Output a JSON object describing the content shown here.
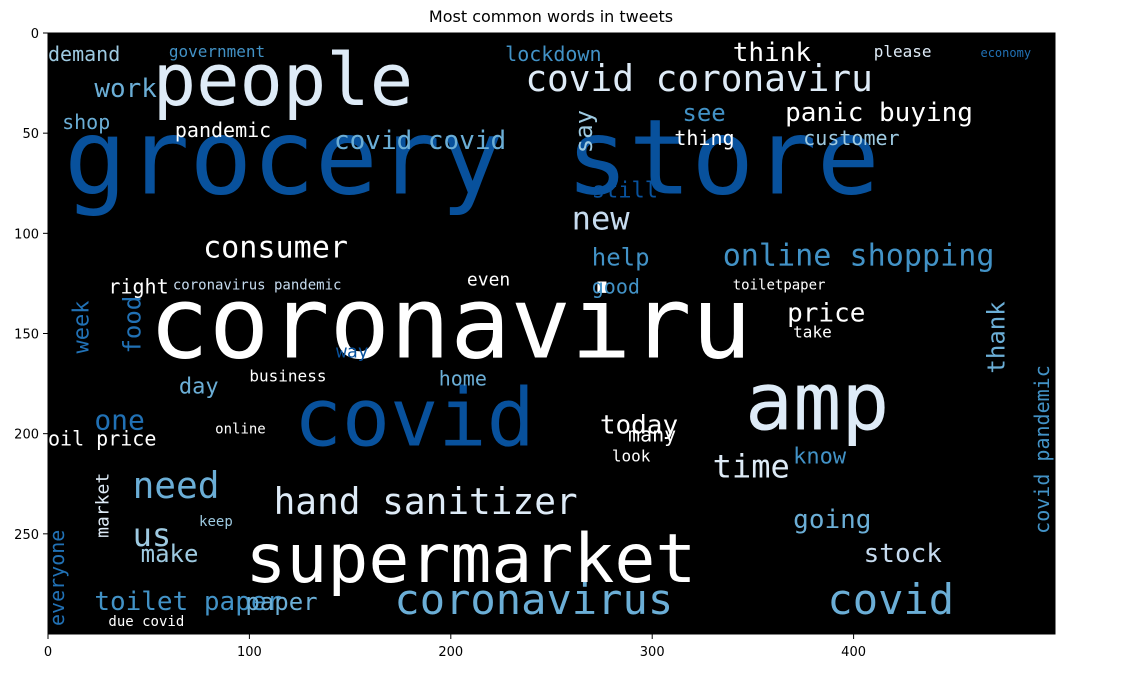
{
  "chart_data": {
    "type": "wordcloud",
    "title": "Most common words in tweets",
    "xlabel": "",
    "ylabel": "",
    "xlim": [
      0,
      500
    ],
    "ylim": [
      300,
      0
    ],
    "x_ticks": [
      0,
      100,
      200,
      300,
      400
    ],
    "y_ticks": [
      0,
      50,
      100,
      150,
      200,
      250
    ],
    "background_color": "#000000",
    "palette": [
      "#084594",
      "#2171b5",
      "#4292c6",
      "#6baed6",
      "#9ecae1",
      "#c6dbef",
      "#deebf7",
      "#ffffff"
    ],
    "words": [
      {
        "text": "grocery store",
        "x": 8,
        "y": 80,
        "size": 52,
        "rotate": 0,
        "color": "#08519c"
      },
      {
        "text": "coronaviru",
        "x": 50,
        "y": 162,
        "size": 50,
        "rotate": 0,
        "color": "#ffffff"
      },
      {
        "text": "people",
        "x": 52,
        "y": 36,
        "size": 36,
        "rotate": 0,
        "color": "#deebf7"
      },
      {
        "text": "covid",
        "x": 122,
        "y": 206,
        "size": 40,
        "rotate": 0,
        "color": "#08519c"
      },
      {
        "text": "amp",
        "x": 346,
        "y": 198,
        "size": 40,
        "rotate": 0,
        "color": "#deebf7"
      },
      {
        "text": "supermarket",
        "x": 98,
        "y": 274,
        "size": 34,
        "rotate": 0,
        "color": "#ffffff"
      },
      {
        "text": "covid coronaviru",
        "x": 237,
        "y": 29,
        "size": 18,
        "rotate": 0,
        "color": "#deebf7"
      },
      {
        "text": "coronavirus",
        "x": 172,
        "y": 290,
        "size": 21,
        "rotate": 0,
        "color": "#6baed6"
      },
      {
        "text": "covid",
        "x": 387,
        "y": 290,
        "size": 21,
        "rotate": 0,
        "color": "#6baed6"
      },
      {
        "text": "hand sanitizer",
        "x": 112,
        "y": 240,
        "size": 18,
        "rotate": 0,
        "color": "#deebf7"
      },
      {
        "text": "need",
        "x": 42,
        "y": 232,
        "size": 18,
        "rotate": 0,
        "color": "#6baed6"
      },
      {
        "text": "time",
        "x": 330,
        "y": 222,
        "size": 16,
        "rotate": 0,
        "color": "#deebf7"
      },
      {
        "text": "online shopping",
        "x": 335,
        "y": 116,
        "size": 15,
        "rotate": 0,
        "color": "#4292c6"
      },
      {
        "text": "consumer",
        "x": 77,
        "y": 112,
        "size": 15,
        "rotate": 0,
        "color": "#ffffff"
      },
      {
        "text": "panic buying",
        "x": 366,
        "y": 44,
        "size": 13,
        "rotate": 0,
        "color": "#ffffff"
      },
      {
        "text": "covid covid",
        "x": 142,
        "y": 58,
        "size": 13,
        "rotate": 0,
        "color": "#6baed6"
      },
      {
        "text": "new",
        "x": 260,
        "y": 98,
        "size": 16,
        "rotate": 0,
        "color": "#c6dbef"
      },
      {
        "text": "price",
        "x": 367,
        "y": 144,
        "size": 13,
        "rotate": 0,
        "color": "#ffffff"
      },
      {
        "text": "going",
        "x": 370,
        "y": 247,
        "size": 13,
        "rotate": 0,
        "color": "#6baed6"
      },
      {
        "text": "today",
        "x": 274,
        "y": 200,
        "size": 13,
        "rotate": 0,
        "color": "#ffffff"
      },
      {
        "text": "toilet paper",
        "x": 23,
        "y": 288,
        "size": 13,
        "rotate": 0,
        "color": "#4292c6"
      },
      {
        "text": "us",
        "x": 42,
        "y": 256,
        "size": 16,
        "rotate": 0,
        "color": "#9ecae1"
      },
      {
        "text": "one",
        "x": 23,
        "y": 198,
        "size": 14,
        "rotate": 0,
        "color": "#2171b5"
      },
      {
        "text": "work",
        "x": 23,
        "y": 32,
        "size": 13,
        "rotate": 0,
        "color": "#6baed6"
      },
      {
        "text": "shop",
        "x": 7,
        "y": 48,
        "size": 10,
        "rotate": 0,
        "color": "#6baed6"
      },
      {
        "text": "pandemic",
        "x": 63,
        "y": 52,
        "size": 10,
        "rotate": 0,
        "color": "#ffffff"
      },
      {
        "text": "demand",
        "x": 0,
        "y": 14,
        "size": 10,
        "rotate": 0,
        "color": "#9ecae1"
      },
      {
        "text": "government",
        "x": 60,
        "y": 12,
        "size": 8,
        "rotate": 0,
        "color": "#4292c6"
      },
      {
        "text": "lockdown",
        "x": 227,
        "y": 14,
        "size": 10,
        "rotate": 0,
        "color": "#4292c6"
      },
      {
        "text": "think",
        "x": 340,
        "y": 14,
        "size": 13,
        "rotate": 0,
        "color": "#ffffff"
      },
      {
        "text": "please",
        "x": 410,
        "y": 12,
        "size": 8,
        "rotate": 0,
        "color": "#deebf7"
      },
      {
        "text": "economy",
        "x": 463,
        "y": 12,
        "size": 6,
        "rotate": 0,
        "color": "#2171b5"
      },
      {
        "text": "see",
        "x": 315,
        "y": 44,
        "size": 12,
        "rotate": 0,
        "color": "#4292c6"
      },
      {
        "text": "thing",
        "x": 311,
        "y": 56,
        "size": 10,
        "rotate": 0,
        "color": "#ffffff"
      },
      {
        "text": "say",
        "x": 270,
        "y": 60,
        "size": 12,
        "rotate": -90,
        "color": "#9ecae1"
      },
      {
        "text": "customer",
        "x": 375,
        "y": 56,
        "size": 10,
        "rotate": 0,
        "color": "#9ecae1"
      },
      {
        "text": "still",
        "x": 270,
        "y": 82,
        "size": 11,
        "rotate": 0,
        "color": "#08519c"
      },
      {
        "text": "help",
        "x": 270,
        "y": 116,
        "size": 12,
        "rotate": 0,
        "color": "#4292c6"
      },
      {
        "text": "good",
        "x": 270,
        "y": 130,
        "size": 10,
        "rotate": 0,
        "color": "#4292c6"
      },
      {
        "text": "right",
        "x": 30,
        "y": 130,
        "size": 10,
        "rotate": 0,
        "color": "#ffffff"
      },
      {
        "text": "coronavirus pandemic",
        "x": 62,
        "y": 128,
        "size": 7,
        "rotate": 0,
        "color": "#c6dbef"
      },
      {
        "text": "even",
        "x": 208,
        "y": 126,
        "size": 9,
        "rotate": 0,
        "color": "#ffffff"
      },
      {
        "text": "toiletpaper",
        "x": 340,
        "y": 128,
        "size": 7,
        "rotate": 0,
        "color": "#ffffff"
      },
      {
        "text": "week",
        "x": 20,
        "y": 160,
        "size": 11,
        "rotate": -90,
        "color": "#2171b5"
      },
      {
        "text": "food",
        "x": 46,
        "y": 160,
        "size": 12,
        "rotate": -90,
        "color": "#2171b5"
      },
      {
        "text": "day",
        "x": 65,
        "y": 180,
        "size": 11,
        "rotate": 0,
        "color": "#6baed6"
      },
      {
        "text": "business",
        "x": 100,
        "y": 174,
        "size": 8,
        "rotate": 0,
        "color": "#ffffff"
      },
      {
        "text": "home",
        "x": 194,
        "y": 176,
        "size": 10,
        "rotate": 0,
        "color": "#6baed6"
      },
      {
        "text": "way",
        "x": 143,
        "y": 162,
        "size": 9,
        "rotate": 0,
        "color": "#08519c"
      },
      {
        "text": "thank",
        "x": 475,
        "y": 170,
        "size": 12,
        "rotate": -90,
        "color": "#6baed6"
      },
      {
        "text": "covid pandemic",
        "x": 497,
        "y": 250,
        "size": 10,
        "rotate": -90,
        "color": "#4292c6"
      },
      {
        "text": "take",
        "x": 370,
        "y": 152,
        "size": 8,
        "rotate": 0,
        "color": "#ffffff"
      },
      {
        "text": "oil price",
        "x": 0,
        "y": 206,
        "size": 10,
        "rotate": 0,
        "color": "#ffffff"
      },
      {
        "text": "market",
        "x": 30,
        "y": 252,
        "size": 9,
        "rotate": -90,
        "color": "#deebf7"
      },
      {
        "text": "everyone",
        "x": 8,
        "y": 296,
        "size": 10,
        "rotate": -90,
        "color": "#2171b5"
      },
      {
        "text": "many",
        "x": 288,
        "y": 204,
        "size": 10,
        "rotate": 0,
        "color": "#ffffff"
      },
      {
        "text": "know",
        "x": 370,
        "y": 215,
        "size": 11,
        "rotate": 0,
        "color": "#4292c6"
      },
      {
        "text": "online",
        "x": 83,
        "y": 200,
        "size": 7,
        "rotate": 0,
        "color": "#ffffff"
      },
      {
        "text": "look",
        "x": 280,
        "y": 214,
        "size": 8,
        "rotate": 0,
        "color": "#ffffff"
      },
      {
        "text": "make",
        "x": 46,
        "y": 264,
        "size": 12,
        "rotate": 0,
        "color": "#9ecae1"
      },
      {
        "text": "keep",
        "x": 75,
        "y": 246,
        "size": 7,
        "rotate": 0,
        "color": "#9ecae1"
      },
      {
        "text": "stock",
        "x": 405,
        "y": 264,
        "size": 13,
        "rotate": 0,
        "color": "#c6dbef"
      },
      {
        "text": "paper",
        "x": 98,
        "y": 288,
        "size": 12,
        "rotate": 0,
        "color": "#6baed6"
      },
      {
        "text": "due covid",
        "x": 30,
        "y": 296,
        "size": 7,
        "rotate": 0,
        "color": "#ffffff"
      }
    ]
  }
}
